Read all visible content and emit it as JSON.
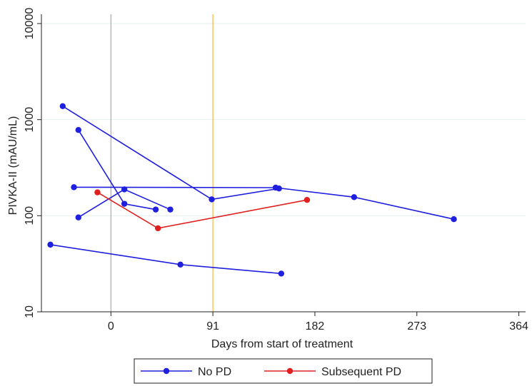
{
  "chart_data": {
    "type": "line",
    "title": "",
    "xlabel": "Days from start of treatment",
    "ylabel": "PIVKA-II (mAU/mL)",
    "xlim": [
      -62,
      370
    ],
    "ylim": [
      10,
      10000
    ],
    "yscale": "log",
    "xticks": [
      0,
      91,
      182,
      273,
      364
    ],
    "xtick_labels": [
      "0",
      "91",
      "182",
      "273",
      "364"
    ],
    "yticks": [
      10,
      100,
      1000,
      10000
    ],
    "ytick_labels": [
      "10",
      "100",
      "1000",
      "10000"
    ],
    "grid": "horizontal",
    "reference_lines": [
      {
        "x": 0,
        "color": "#999999"
      },
      {
        "x": 91,
        "color": "#f5a623"
      }
    ],
    "legend": {
      "position": "bottom",
      "entries": [
        {
          "name": "No PD",
          "color": "#1f1fdf"
        },
        {
          "name": "Subsequent PD",
          "color": "#e02020"
        }
      ]
    },
    "series": [
      {
        "name": "No PD",
        "color": "#1f1fdf",
        "x": [
          -43,
          90,
          150
        ],
        "y": [
          1380,
          148,
          192
        ]
      },
      {
        "name": "No PD",
        "color": "#1f1fdf",
        "x": [
          -29,
          12,
          40
        ],
        "y": [
          780,
          133,
          116
        ]
      },
      {
        "name": "No PD",
        "color": "#1f1fdf",
        "x": [
          -33,
          147,
          217,
          306
        ],
        "y": [
          198,
          196,
          156,
          92
        ]
      },
      {
        "name": "No PD",
        "color": "#1f1fdf",
        "x": [
          -29,
          12,
          53
        ],
        "y": [
          96,
          188,
          116
        ]
      },
      {
        "name": "No PD",
        "color": "#1f1fdf",
        "x": [
          -54,
          62,
          152
        ],
        "y": [
          50,
          31,
          25
        ]
      },
      {
        "name": "Subsequent PD",
        "color": "#e02020",
        "x": [
          -12,
          42,
          175
        ],
        "y": [
          175,
          74,
          146
        ]
      }
    ]
  }
}
